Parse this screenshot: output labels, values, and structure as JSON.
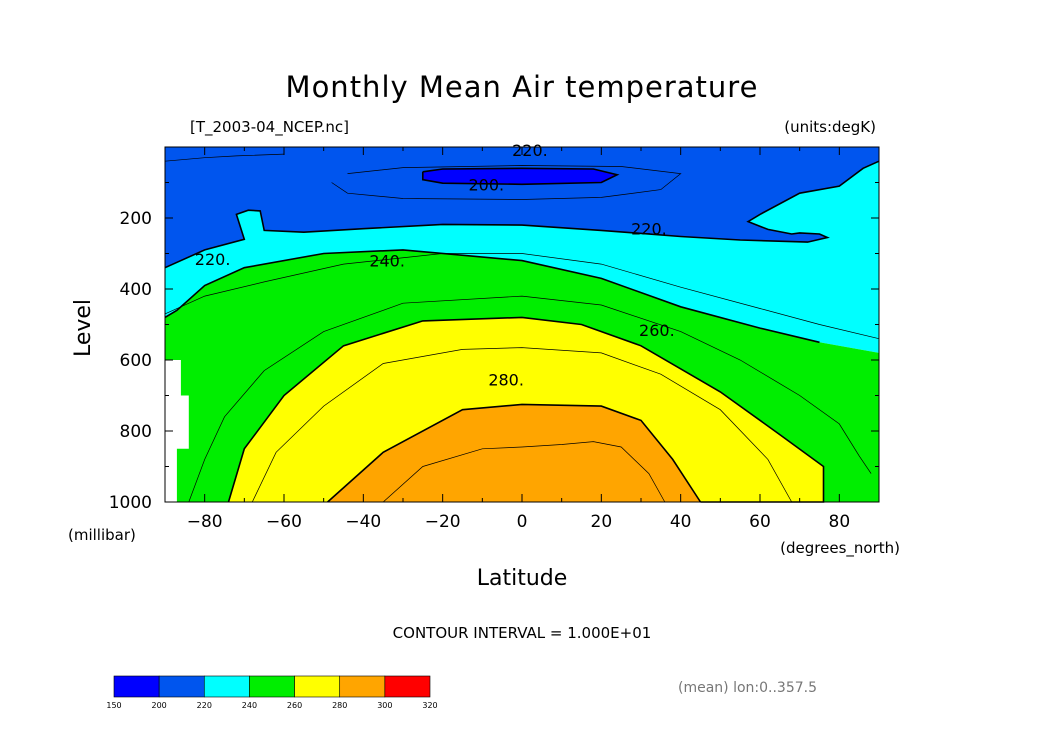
{
  "chart_data": {
    "type": "contour",
    "title": "Monthly Mean Air temperature",
    "file_label": "[T_2003-04_NCEP.nc]",
    "units_label": "(units:degK)",
    "xlabel": "Latitude",
    "ylabel": "Level",
    "x_units": "(degrees_north)",
    "y_units": "(millibar)",
    "xlim": [
      -90,
      90
    ],
    "ylim": [
      0,
      1000
    ],
    "y_inverted": true,
    "x_ticks": [
      -80,
      -60,
      -40,
      -20,
      0,
      20,
      40,
      60,
      80
    ],
    "x_tick_labels": [
      "−80",
      "−60",
      "−40",
      "−20",
      "0",
      "20",
      "40",
      "60",
      "80"
    ],
    "y_ticks": [
      200,
      400,
      600,
      800,
      1000
    ],
    "y_tick_labels": [
      "200",
      "400",
      "600",
      "800",
      "1000"
    ],
    "contour_interval_text": "CONTOUR INTERVAL = 1.000E+01",
    "contour_labels": [
      {
        "text": "220.",
        "x": 2,
        "y": 8
      },
      {
        "text": "200.",
        "x": -9,
        "y": 105
      },
      {
        "text": "220.",
        "x": 32,
        "y": 230
      },
      {
        "text": "220.",
        "x": -78,
        "y": 315
      },
      {
        "text": "240.",
        "x": -34,
        "y": 320
      },
      {
        "text": "260.",
        "x": 34,
        "y": 515
      },
      {
        "text": "280.",
        "x": -4,
        "y": 655
      }
    ],
    "colorbar": {
      "levels": [
        150,
        200,
        220,
        240,
        260,
        280,
        300,
        320
      ],
      "level_labels": [
        "150",
        "200",
        "220",
        "240",
        "260",
        "280",
        "300",
        "320"
      ],
      "colors": [
        "#0000ff",
        "#0055ee",
        "#00ffff",
        "#00ee00",
        "#ffff00",
        "#ffa500",
        "#ff0000"
      ]
    },
    "regions": [
      {
        "name": "200-220",
        "color": "#0055ee",
        "pts": [
          [
            -90,
            0
          ],
          [
            90,
            0
          ],
          [
            90,
            40
          ],
          [
            86,
            60
          ],
          [
            80,
            110
          ],
          [
            70,
            130
          ],
          [
            60,
            190
          ],
          [
            57,
            210
          ],
          [
            62,
            232
          ],
          [
            68,
            245
          ],
          [
            70,
            242
          ],
          [
            75,
            245
          ],
          [
            77,
            255
          ],
          [
            72,
            268
          ],
          [
            55,
            262
          ],
          [
            40,
            252
          ],
          [
            20,
            235
          ],
          [
            0,
            220
          ],
          [
            -20,
            218
          ],
          [
            -40,
            230
          ],
          [
            -55,
            240
          ],
          [
            -65,
            235
          ],
          [
            -66,
            180
          ],
          [
            -69,
            178
          ],
          [
            -72,
            190
          ],
          [
            -70,
            260
          ],
          [
            -80,
            290
          ],
          [
            -90,
            340
          ]
        ]
      },
      {
        "name": "below-200",
        "color": "#0000ff",
        "pts": [
          [
            -25,
            70
          ],
          [
            -20,
            62
          ],
          [
            0,
            60
          ],
          [
            18,
            62
          ],
          [
            24,
            78
          ],
          [
            20,
            100
          ],
          [
            0,
            105
          ],
          [
            -20,
            102
          ],
          [
            -25,
            92
          ]
        ]
      },
      {
        "name": "220-240",
        "color": "#00ffff",
        "pts": [
          [
            -90,
            340
          ],
          [
            -80,
            290
          ],
          [
            -70,
            260
          ],
          [
            -72,
            190
          ],
          [
            -69,
            178
          ],
          [
            -66,
            180
          ],
          [
            -65,
            235
          ],
          [
            -55,
            240
          ],
          [
            -40,
            230
          ],
          [
            -20,
            218
          ],
          [
            0,
            220
          ],
          [
            20,
            235
          ],
          [
            40,
            252
          ],
          [
            55,
            262
          ],
          [
            72,
            268
          ],
          [
            77,
            255
          ],
          [
            75,
            245
          ],
          [
            70,
            242
          ],
          [
            68,
            245
          ],
          [
            62,
            232
          ],
          [
            57,
            210
          ],
          [
            60,
            190
          ],
          [
            70,
            130
          ],
          [
            80,
            110
          ],
          [
            86,
            60
          ],
          [
            90,
            40
          ],
          [
            90,
            580
          ],
          [
            75,
            550
          ],
          [
            60,
            510
          ],
          [
            40,
            450
          ],
          [
            20,
            370
          ],
          [
            0,
            320
          ],
          [
            -30,
            290
          ],
          [
            -50,
            300
          ],
          [
            -70,
            340
          ],
          [
            -80,
            390
          ],
          [
            -87,
            460
          ],
          [
            -90,
            480
          ]
        ]
      },
      {
        "name": "240-260",
        "color": "#00ee00",
        "pts": [
          [
            -90,
            480
          ],
          [
            -87,
            460
          ],
          [
            -80,
            390
          ],
          [
            -70,
            340
          ],
          [
            -50,
            300
          ],
          [
            -30,
            290
          ],
          [
            0,
            320
          ],
          [
            20,
            370
          ],
          [
            40,
            450
          ],
          [
            60,
            510
          ],
          [
            75,
            550
          ],
          [
            90,
            580
          ],
          [
            90,
            1000
          ],
          [
            76,
            1000
          ],
          [
            76,
            900
          ],
          [
            65,
            810
          ],
          [
            50,
            690
          ],
          [
            30,
            560
          ],
          [
            15,
            500
          ],
          [
            0,
            480
          ],
          [
            -25,
            490
          ],
          [
            -45,
            560
          ],
          [
            -60,
            700
          ],
          [
            -70,
            850
          ],
          [
            -74,
            1000
          ],
          [
            -87,
            1000
          ],
          [
            -87,
            850
          ],
          [
            -84,
            850
          ],
          [
            -84,
            700
          ],
          [
            -86,
            700
          ],
          [
            -86,
            600
          ],
          [
            -90,
            600
          ]
        ]
      },
      {
        "name": "260-280",
        "color": "#ffff00",
        "pts": [
          [
            -74,
            1000
          ],
          [
            -70,
            850
          ],
          [
            -60,
            700
          ],
          [
            -45,
            560
          ],
          [
            -25,
            490
          ],
          [
            0,
            480
          ],
          [
            15,
            500
          ],
          [
            30,
            560
          ],
          [
            50,
            690
          ],
          [
            65,
            810
          ],
          [
            76,
            900
          ],
          [
            76,
            1000
          ],
          [
            45,
            1000
          ],
          [
            38,
            880
          ],
          [
            30,
            770
          ],
          [
            20,
            730
          ],
          [
            0,
            725
          ],
          [
            -15,
            740
          ],
          [
            -35,
            860
          ],
          [
            -49,
            1000
          ]
        ]
      },
      {
        "name": "280-300",
        "color": "#ffa500",
        "pts": [
          [
            -49,
            1000
          ],
          [
            -35,
            860
          ],
          [
            -15,
            740
          ],
          [
            0,
            725
          ],
          [
            20,
            730
          ],
          [
            30,
            770
          ],
          [
            38,
            880
          ],
          [
            45,
            1000
          ]
        ]
      }
    ],
    "contour_lines": [
      {
        "level": "210",
        "bold": false,
        "pts": [
          [
            -44,
            75
          ],
          [
            -30,
            58
          ],
          [
            0,
            52
          ],
          [
            25,
            55
          ],
          [
            40,
            75
          ],
          [
            35,
            120
          ],
          [
            20,
            142
          ],
          [
            0,
            148
          ],
          [
            -30,
            145
          ],
          [
            -44,
            130
          ],
          [
            -48,
            100
          ]
        ]
      },
      {
        "level": "210b",
        "bold": false,
        "pts": [
          [
            -90,
            40
          ],
          [
            -80,
            30
          ],
          [
            -72,
            25
          ],
          [
            -60,
            20
          ]
        ]
      },
      {
        "level": "230",
        "bold": false,
        "pts": [
          [
            -90,
            470
          ],
          [
            -80,
            420
          ],
          [
            -65,
            380
          ],
          [
            -45,
            330
          ],
          [
            -20,
            300
          ],
          [
            0,
            300
          ],
          [
            20,
            330
          ],
          [
            40,
            395
          ],
          [
            60,
            455
          ],
          [
            75,
            500
          ],
          [
            90,
            540
          ]
        ]
      },
      {
        "level": "250",
        "bold": false,
        "pts": [
          [
            -84,
            1000
          ],
          [
            -80,
            880
          ],
          [
            -75,
            760
          ],
          [
            -65,
            630
          ],
          [
            -50,
            520
          ],
          [
            -30,
            440
          ],
          [
            0,
            420
          ],
          [
            20,
            445
          ],
          [
            40,
            520
          ],
          [
            55,
            600
          ],
          [
            70,
            700
          ],
          [
            80,
            780
          ],
          [
            85,
            870
          ],
          [
            88,
            920
          ]
        ]
      },
      {
        "level": "270",
        "bold": false,
        "pts": [
          [
            -68,
            1000
          ],
          [
            -62,
            860
          ],
          [
            -50,
            730
          ],
          [
            -35,
            610
          ],
          [
            -15,
            570
          ],
          [
            0,
            565
          ],
          [
            20,
            580
          ],
          [
            35,
            640
          ],
          [
            50,
            740
          ],
          [
            62,
            880
          ],
          [
            68,
            1000
          ]
        ]
      },
      {
        "level": "290",
        "bold": false,
        "pts": [
          [
            -35,
            1000
          ],
          [
            -25,
            900
          ],
          [
            -10,
            850
          ],
          [
            0,
            845
          ],
          [
            10,
            838
          ],
          [
            18,
            830
          ],
          [
            25,
            845
          ],
          [
            32,
            920
          ],
          [
            36,
            1000
          ]
        ]
      }
    ]
  }
}
